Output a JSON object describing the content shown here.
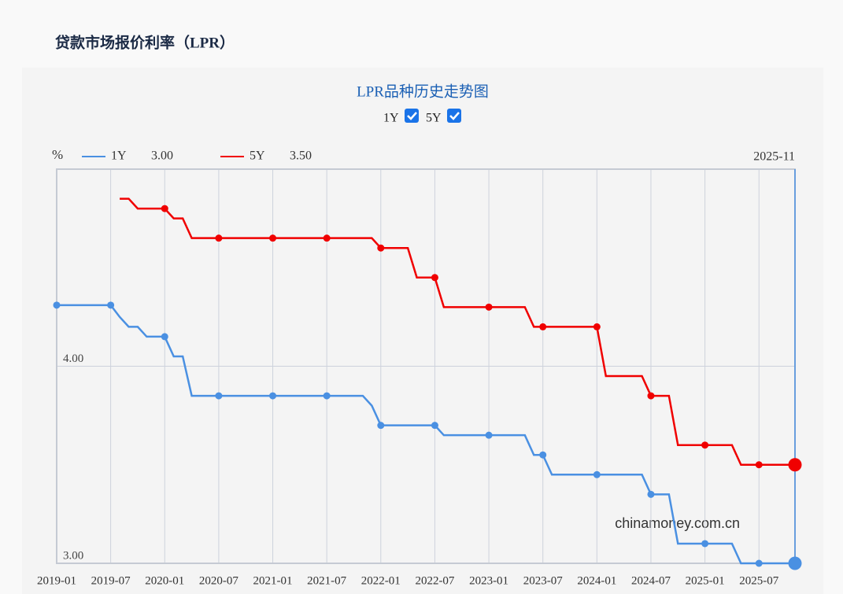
{
  "page_title": "贷款市场报价利率（LPR）",
  "chart_data": {
    "type": "line",
    "title": "LPR品种历史走势图",
    "unit": "%",
    "watermark": "chinamoney.com.cn",
    "cursor": "2025-11",
    "x": [
      "2019-01",
      "2019-02",
      "2019-03",
      "2019-04",
      "2019-05",
      "2019-06",
      "2019-07",
      "2019-08",
      "2019-09",
      "2019-10",
      "2019-11",
      "2019-12",
      "2020-01",
      "2020-02",
      "2020-03",
      "2020-04",
      "2020-05",
      "2020-06",
      "2020-07",
      "2020-08",
      "2020-09",
      "2020-10",
      "2020-11",
      "2020-12",
      "2021-01",
      "2021-02",
      "2021-03",
      "2021-04",
      "2021-05",
      "2021-06",
      "2021-07",
      "2021-08",
      "2021-09",
      "2021-10",
      "2021-11",
      "2021-12",
      "2022-01",
      "2022-02",
      "2022-03",
      "2022-04",
      "2022-05",
      "2022-06",
      "2022-07",
      "2022-08",
      "2022-09",
      "2022-10",
      "2022-11",
      "2022-12",
      "2023-01",
      "2023-02",
      "2023-03",
      "2023-04",
      "2023-05",
      "2023-06",
      "2023-07",
      "2023-08",
      "2023-09",
      "2023-10",
      "2023-11",
      "2023-12",
      "2024-01",
      "2024-02",
      "2024-03",
      "2024-04",
      "2024-05",
      "2024-06",
      "2024-07",
      "2024-08",
      "2024-09",
      "2024-10",
      "2024-11",
      "2024-12",
      "2025-01",
      "2025-02",
      "2025-03",
      "2025-04",
      "2025-05",
      "2025-06",
      "2025-07",
      "2025-08",
      "2025-09",
      "2025-10",
      "2025-11"
    ],
    "xticks": [
      "2019-01",
      "2019-07",
      "2020-01",
      "2020-07",
      "2021-01",
      "2021-07",
      "2022-01",
      "2022-07",
      "2023-01",
      "2023-07",
      "2024-01",
      "2024-07",
      "2025-01",
      "2025-07"
    ],
    "ylim": [
      3,
      5
    ],
    "yticks": [
      {
        "value": 3,
        "label": "3.00"
      },
      {
        "value": 4,
        "label": "4.00"
      }
    ],
    "grid": true,
    "series": [
      {
        "name": "1Y",
        "color": "#4a90e2",
        "current_label": "3.00",
        "checked": true,
        "values": [
          4.31,
          4.31,
          4.31,
          4.31,
          4.31,
          4.31,
          4.31,
          4.25,
          4.2,
          4.2,
          4.15,
          4.15,
          4.15,
          4.05,
          4.05,
          3.85,
          3.85,
          3.85,
          3.85,
          3.85,
          3.85,
          3.85,
          3.85,
          3.85,
          3.85,
          3.85,
          3.85,
          3.85,
          3.85,
          3.85,
          3.85,
          3.85,
          3.85,
          3.85,
          3.85,
          3.8,
          3.7,
          3.7,
          3.7,
          3.7,
          3.7,
          3.7,
          3.7,
          3.65,
          3.65,
          3.65,
          3.65,
          3.65,
          3.65,
          3.65,
          3.65,
          3.65,
          3.65,
          3.55,
          3.55,
          3.45,
          3.45,
          3.45,
          3.45,
          3.45,
          3.45,
          3.45,
          3.45,
          3.45,
          3.45,
          3.45,
          3.35,
          3.35,
          3.35,
          3.1,
          3.1,
          3.1,
          3.1,
          3.1,
          3.1,
          3.1,
          3,
          3,
          3,
          3,
          3,
          3,
          3
        ]
      },
      {
        "name": "5Y",
        "color": "#f00000",
        "current_label": "3.50",
        "checked": true,
        "values": [
          null,
          null,
          null,
          null,
          null,
          null,
          null,
          4.85,
          4.85,
          4.8,
          4.8,
          4.8,
          4.8,
          4.75,
          4.75,
          4.65,
          4.65,
          4.65,
          4.65,
          4.65,
          4.65,
          4.65,
          4.65,
          4.65,
          4.65,
          4.65,
          4.65,
          4.65,
          4.65,
          4.65,
          4.65,
          4.65,
          4.65,
          4.65,
          4.65,
          4.65,
          4.6,
          4.6,
          4.6,
          4.6,
          4.45,
          4.45,
          4.45,
          4.3,
          4.3,
          4.3,
          4.3,
          4.3,
          4.3,
          4.3,
          4.3,
          4.3,
          4.3,
          4.2,
          4.2,
          4.2,
          4.2,
          4.2,
          4.2,
          4.2,
          4.2,
          3.95,
          3.95,
          3.95,
          3.95,
          3.95,
          3.85,
          3.85,
          3.85,
          3.6,
          3.6,
          3.6,
          3.6,
          3.6,
          3.6,
          3.6,
          3.5,
          3.5,
          3.5,
          3.5,
          3.5,
          3.5,
          3.5
        ]
      }
    ]
  }
}
